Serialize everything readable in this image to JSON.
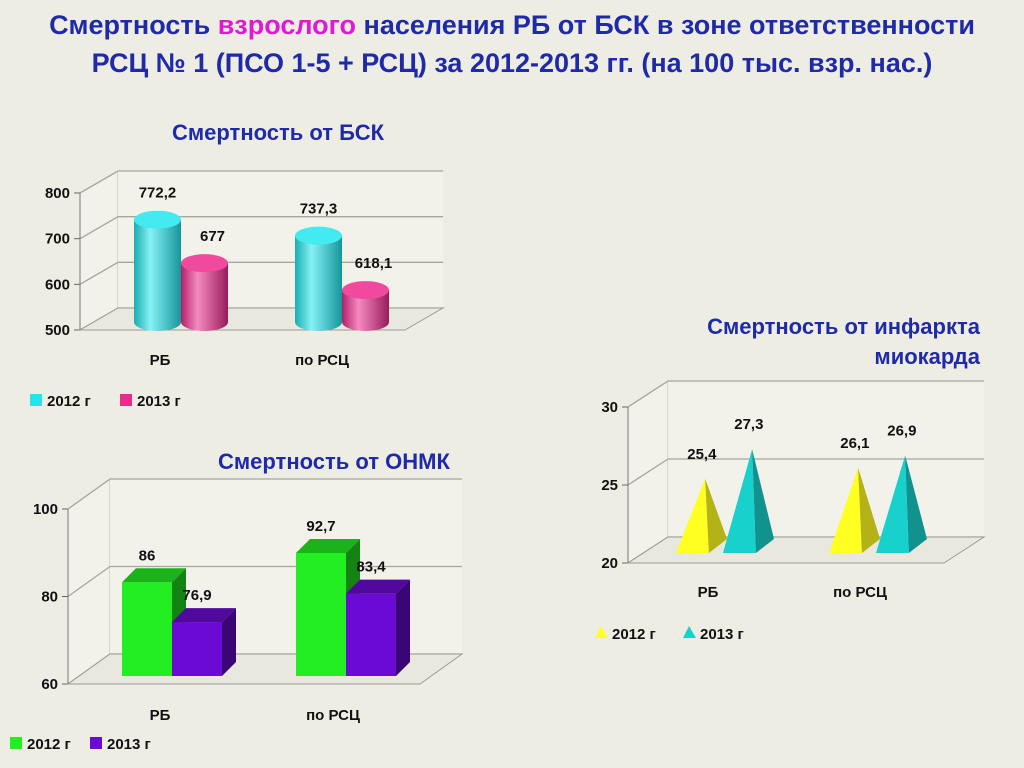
{
  "title": {
    "part1": "Смертность ",
    "highlight": "взрослого",
    "part2": " населения РБ от БСК в зоне ответственности",
    "line2": "РСЦ № 1 (ПСО 1-5 + РСЦ)  за 2012-2013 гг. (на 100 тыс. взр. нас.)",
    "highlight_color": "#e01ad0"
  },
  "chart_data": [
    {
      "id": "bsk",
      "type": "bar",
      "shape": "cylinder",
      "title": "Смертность от БСК",
      "categories": [
        "РБ",
        "по РСЦ"
      ],
      "series": [
        {
          "name": "2012 г",
          "values": [
            772.2,
            737.3
          ],
          "labels": [
            "772,2",
            "737,3"
          ],
          "color": "#22e6ec"
        },
        {
          "name": "2013 г",
          "values": [
            677,
            618.1
          ],
          "labels": [
            "677",
            "618,1"
          ],
          "color": "#ec2a8c"
        }
      ],
      "ylim": [
        500,
        800
      ],
      "yticks": [
        500,
        600,
        700,
        800
      ],
      "grid": true,
      "legend": "bottom-left"
    },
    {
      "id": "onmk",
      "type": "bar",
      "shape": "box",
      "title": "Смертность от ОНМК",
      "categories": [
        "РБ",
        "по РСЦ"
      ],
      "series": [
        {
          "name": "2012 г",
          "values": [
            86,
            92.7
          ],
          "labels": [
            "86",
            "92,7"
          ],
          "color": "#22ee22"
        },
        {
          "name": "2013 г",
          "values": [
            76.9,
            83.4
          ],
          "labels": [
            "76,9",
            "83,4"
          ],
          "color": "#6a0ad4"
        }
      ],
      "ylim": [
        60,
        100
      ],
      "yticks": [
        60,
        80,
        100
      ],
      "grid": true,
      "legend": "bottom-left"
    },
    {
      "id": "im",
      "type": "bar",
      "shape": "pyramid",
      "title": "Смертность от инфаркта миокарда",
      "categories": [
        "РБ",
        "по РСЦ"
      ],
      "series": [
        {
          "name": "2012 г",
          "values": [
            25.4,
            26.1
          ],
          "labels": [
            "25,4",
            "26,1"
          ],
          "color": "#ffff22"
        },
        {
          "name": "2013 г",
          "values": [
            27.3,
            26.9
          ],
          "labels": [
            "27,3",
            "26,9"
          ],
          "color": "#18d0cc"
        }
      ],
      "ylim": [
        20,
        30
      ],
      "yticks": [
        20,
        25,
        30
      ],
      "grid": true,
      "legend": "bottom-left"
    }
  ]
}
